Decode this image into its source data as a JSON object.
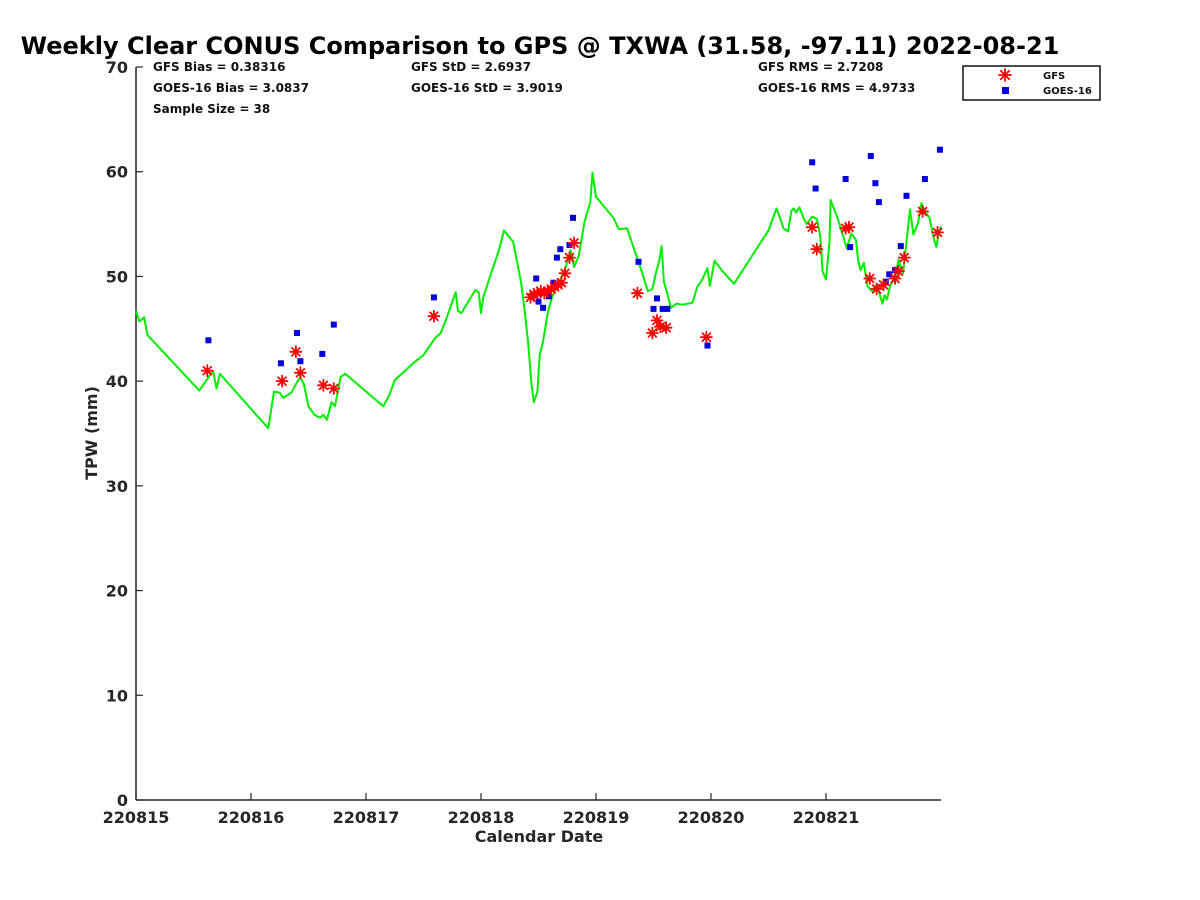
{
  "chart_data": {
    "type": "scatter",
    "title": "Weekly Clear CONUS Comparison to GPS @ TXWA (31.58, -97.11) 2022-08-21",
    "xlabel": "Calendar Date",
    "ylabel": "TPW (mm)",
    "x_ticks": [
      "220815",
      "220816",
      "220817",
      "220818",
      "220819",
      "220820",
      "220821"
    ],
    "xlim": [
      0,
      7
    ],
    "ylim": [
      0,
      70
    ],
    "y_ticks": [
      0,
      10,
      20,
      30,
      40,
      50,
      60,
      70
    ],
    "grid": false,
    "legend_position": "top-right",
    "stats": {
      "gfs_bias": "GFS Bias = 0.38316",
      "goes_bias": "GOES-16 Bias = 3.0837",
      "sample_size": "Sample Size = 38",
      "gfs_std": "GFS StD = 2.6937",
      "goes_std": "GOES-16 StD = 3.9019",
      "gfs_rms": "GFS RMS = 2.7208",
      "goes_rms": "GOES-16 RMS = 4.9733"
    },
    "colors": {
      "gps_line": "#00ee00",
      "gfs": "#ff0000",
      "goes": "#0000dd"
    },
    "series": [
      {
        "type": "line",
        "points": [
          [
            0.0,
            46.7
          ],
          [
            0.03,
            45.7
          ],
          [
            0.07,
            46.1
          ],
          [
            0.1,
            44.4
          ],
          [
            0.55,
            39.1
          ],
          [
            0.62,
            40.2
          ],
          [
            0.67,
            41.0
          ],
          [
            0.7,
            39.3
          ],
          [
            0.73,
            40.7
          ],
          [
            1.15,
            35.5
          ],
          [
            1.2,
            39.0
          ],
          [
            1.25,
            38.9
          ],
          [
            1.28,
            38.4
          ],
          [
            1.35,
            38.9
          ],
          [
            1.4,
            39.9
          ],
          [
            1.43,
            40.4
          ],
          [
            1.46,
            39.7
          ],
          [
            1.5,
            37.6
          ],
          [
            1.55,
            36.8
          ],
          [
            1.6,
            36.5
          ],
          [
            1.63,
            36.8
          ],
          [
            1.66,
            36.3
          ],
          [
            1.7,
            38.0
          ],
          [
            1.73,
            37.6
          ],
          [
            1.78,
            40.4
          ],
          [
            1.82,
            40.7
          ],
          [
            2.15,
            37.6
          ],
          [
            2.2,
            38.6
          ],
          [
            2.25,
            40.1
          ],
          [
            2.42,
            41.8
          ],
          [
            2.5,
            42.5
          ],
          [
            2.6,
            44.1
          ],
          [
            2.65,
            44.6
          ],
          [
            2.7,
            46.0
          ],
          [
            2.78,
            48.5
          ],
          [
            2.8,
            46.7
          ],
          [
            2.83,
            46.5
          ],
          [
            2.95,
            48.7
          ],
          [
            2.98,
            48.5
          ],
          [
            3.0,
            46.5
          ],
          [
            3.02,
            48.0
          ],
          [
            3.1,
            50.7
          ],
          [
            3.15,
            52.3
          ],
          [
            3.18,
            53.5
          ],
          [
            3.2,
            54.4
          ],
          [
            3.28,
            53.3
          ],
          [
            3.35,
            49.3
          ],
          [
            3.38,
            46.7
          ],
          [
            3.41,
            43.6
          ],
          [
            3.44,
            39.6
          ],
          [
            3.46,
            38.0
          ],
          [
            3.49,
            39.0
          ],
          [
            3.51,
            42.5
          ],
          [
            3.54,
            43.8
          ],
          [
            3.58,
            46.5
          ],
          [
            3.62,
            48.1
          ],
          [
            3.66,
            49.0
          ],
          [
            3.7,
            49.9
          ],
          [
            3.74,
            51.0
          ],
          [
            3.78,
            52.5
          ],
          [
            3.81,
            50.9
          ],
          [
            3.85,
            52.0
          ],
          [
            3.9,
            55.2
          ],
          [
            3.95,
            57.1
          ],
          [
            3.97,
            59.9
          ],
          [
            4.0,
            57.6
          ],
          [
            4.15,
            55.6
          ],
          [
            4.2,
            54.5
          ],
          [
            4.27,
            54.6
          ],
          [
            4.35,
            52.0
          ],
          [
            4.4,
            50.4
          ],
          [
            4.45,
            48.6
          ],
          [
            4.49,
            48.8
          ],
          [
            4.52,
            50.3
          ],
          [
            4.55,
            51.5
          ],
          [
            4.57,
            52.9
          ],
          [
            4.59,
            49.5
          ],
          [
            4.62,
            48.4
          ],
          [
            4.65,
            47.0
          ],
          [
            4.7,
            47.4
          ],
          [
            4.75,
            47.3
          ],
          [
            4.8,
            47.4
          ],
          [
            4.84,
            47.5
          ],
          [
            4.88,
            49.0
          ],
          [
            4.92,
            49.6
          ],
          [
            4.97,
            50.8
          ],
          [
            4.99,
            49.1
          ],
          [
            5.03,
            51.5
          ],
          [
            5.1,
            50.5
          ],
          [
            5.2,
            49.3
          ],
          [
            5.5,
            54.4
          ],
          [
            5.57,
            56.5
          ],
          [
            5.6,
            55.6
          ],
          [
            5.63,
            54.6
          ],
          [
            5.67,
            54.3
          ],
          [
            5.7,
            56.3
          ],
          [
            5.72,
            56.5
          ],
          [
            5.74,
            56.1
          ],
          [
            5.77,
            56.6
          ],
          [
            5.8,
            55.7
          ],
          [
            5.83,
            55.0
          ],
          [
            5.88,
            55.7
          ],
          [
            5.92,
            55.5
          ],
          [
            5.95,
            53.8
          ],
          [
            5.97,
            50.5
          ],
          [
            6.0,
            49.7
          ],
          [
            6.03,
            53.3
          ],
          [
            6.04,
            57.3
          ],
          [
            6.1,
            55.6
          ],
          [
            6.15,
            53.8
          ],
          [
            6.18,
            52.7
          ],
          [
            6.22,
            54.1
          ],
          [
            6.26,
            53.5
          ],
          [
            6.28,
            51.5
          ],
          [
            6.3,
            50.6
          ],
          [
            6.33,
            51.3
          ],
          [
            6.36,
            49.1
          ],
          [
            6.4,
            48.6
          ],
          [
            6.44,
            49.2
          ],
          [
            6.47,
            48.2
          ],
          [
            6.49,
            47.4
          ],
          [
            6.51,
            48.2
          ],
          [
            6.53,
            47.8
          ],
          [
            6.56,
            49.2
          ],
          [
            6.6,
            49.8
          ],
          [
            6.63,
            51.6
          ],
          [
            6.67,
            50.3
          ],
          [
            6.7,
            53.3
          ],
          [
            6.73,
            56.4
          ],
          [
            6.76,
            54.0
          ],
          [
            6.8,
            55.1
          ],
          [
            6.83,
            57.0
          ],
          [
            6.86,
            56.2
          ],
          [
            6.9,
            55.6
          ],
          [
            6.94,
            53.5
          ],
          [
            6.96,
            52.8
          ],
          [
            6.98,
            54.1
          ],
          [
            7.0,
            54.8
          ]
        ]
      },
      {
        "name": "GFS",
        "type": "scatter",
        "points": [
          [
            0.62,
            41.0
          ],
          [
            1.27,
            40.0
          ],
          [
            1.39,
            42.8
          ],
          [
            1.43,
            40.8
          ],
          [
            1.63,
            39.6
          ],
          [
            1.72,
            39.3
          ],
          [
            2.59,
            46.2
          ],
          [
            3.43,
            48.0
          ],
          [
            3.46,
            48.3
          ],
          [
            3.49,
            48.4
          ],
          [
            3.52,
            48.6
          ],
          [
            3.55,
            48.4
          ],
          [
            3.58,
            48.6
          ],
          [
            3.61,
            48.8
          ],
          [
            3.64,
            49.0
          ],
          [
            3.67,
            49.2
          ],
          [
            3.7,
            49.4
          ],
          [
            3.73,
            50.3
          ],
          [
            3.77,
            51.8
          ],
          [
            3.81,
            53.2
          ],
          [
            4.36,
            48.4
          ],
          [
            4.49,
            44.6
          ],
          [
            4.53,
            45.8
          ],
          [
            4.56,
            45.2
          ],
          [
            4.61,
            45.1
          ],
          [
            4.96,
            44.2
          ],
          [
            5.88,
            54.7
          ],
          [
            5.92,
            52.6
          ],
          [
            6.17,
            54.6
          ],
          [
            6.2,
            54.7
          ],
          [
            6.38,
            49.8
          ],
          [
            6.44,
            48.8
          ],
          [
            6.5,
            49.2
          ],
          [
            6.6,
            49.8
          ],
          [
            6.63,
            50.5
          ],
          [
            6.68,
            51.8
          ],
          [
            6.84,
            56.2
          ],
          [
            6.97,
            54.2
          ]
        ]
      },
      {
        "name": "GOES-16",
        "type": "scatter",
        "points": [
          [
            0.63,
            43.9
          ],
          [
            1.26,
            41.7
          ],
          [
            1.4,
            44.6
          ],
          [
            1.43,
            41.9
          ],
          [
            1.62,
            42.6
          ],
          [
            1.72,
            45.4
          ],
          [
            2.59,
            48.0
          ],
          [
            3.48,
            49.8
          ],
          [
            3.5,
            47.6
          ],
          [
            3.54,
            47.0
          ],
          [
            3.59,
            48.1
          ],
          [
            3.63,
            49.4
          ],
          [
            3.66,
            51.8
          ],
          [
            3.69,
            52.6
          ],
          [
            3.77,
            53.0
          ],
          [
            3.8,
            55.6
          ],
          [
            4.37,
            51.4
          ],
          [
            4.5,
            46.9
          ],
          [
            4.53,
            47.9
          ],
          [
            4.58,
            46.9
          ],
          [
            4.62,
            46.9
          ],
          [
            4.97,
            43.4
          ],
          [
            5.88,
            60.9
          ],
          [
            5.91,
            58.4
          ],
          [
            6.17,
            59.3
          ],
          [
            6.21,
            52.8
          ],
          [
            6.39,
            61.5
          ],
          [
            6.43,
            58.9
          ],
          [
            6.46,
            57.1
          ],
          [
            6.52,
            49.5
          ],
          [
            6.55,
            50.2
          ],
          [
            6.6,
            50.6
          ],
          [
            6.65,
            52.9
          ],
          [
            6.7,
            57.7
          ],
          [
            6.86,
            59.3
          ],
          [
            6.99,
            62.1
          ]
        ]
      }
    ]
  }
}
